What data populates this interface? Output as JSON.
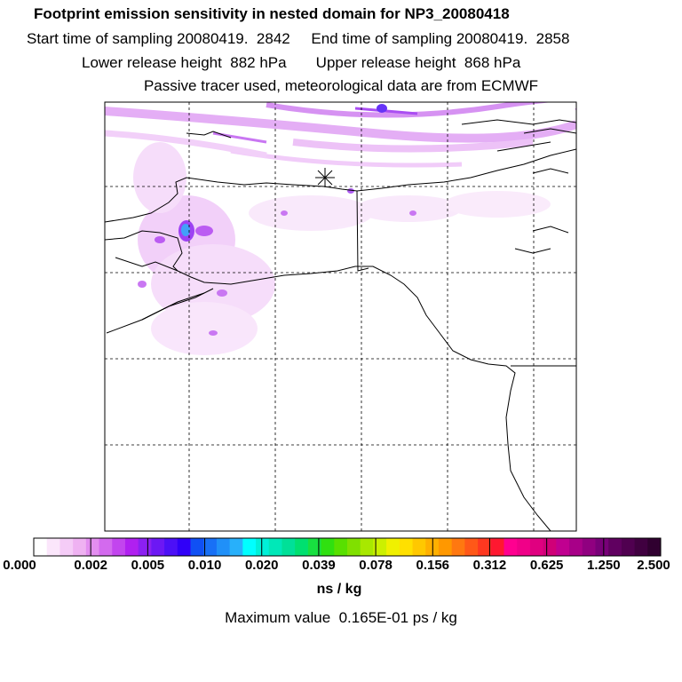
{
  "header": {
    "title": "Footprint emission sensitivity in nested domain for NP3_20080418",
    "line2": "Start time of sampling 20080419.  2842     End time of sampling 20080419.  2858",
    "line3": "Lower release height  882 hPa       Upper release height  868 hPa",
    "line4": "Passive tracer used, meteorological data are from ECMWF"
  },
  "colorbar": {
    "labels": [
      "0.000",
      "0.002",
      "0.005",
      "0.010",
      "0.020",
      "0.039",
      "0.078",
      "0.156",
      "0.312",
      "0.625",
      "1.250",
      "2.500"
    ],
    "colors": [
      "#ffffff",
      "#fbe6fb",
      "#f5ccf7",
      "#efb2f2",
      "#e38ef0",
      "#d36aee",
      "#c245ee",
      "#b020f0",
      "#8c20f2",
      "#6c18f4",
      "#4c10f6",
      "#3000f8",
      "#1050f4",
      "#1870f6",
      "#2090f8",
      "#28b0fa",
      "#00ffff",
      "#00f0d8",
      "#00e8b8",
      "#00e098",
      "#00e070",
      "#18e040",
      "#30e010",
      "#58e000",
      "#80e000",
      "#a8e800",
      "#ccf000",
      "#f0f000",
      "#ffe000",
      "#ffc800",
      "#ffb000",
      "#ff9800",
      "#ff7810",
      "#ff5818",
      "#ff3820",
      "#ff1830",
      "#ff0090",
      "#f00088",
      "#e00080",
      "#d00078",
      "#c00090",
      "#a80088",
      "#900080",
      "#780078",
      "#600060",
      "#500050",
      "#400040",
      "#300030"
    ],
    "units": "ns / kg"
  },
  "footer": {
    "max_value": "Maximum value  0.165E-01 ps / kg"
  }
}
